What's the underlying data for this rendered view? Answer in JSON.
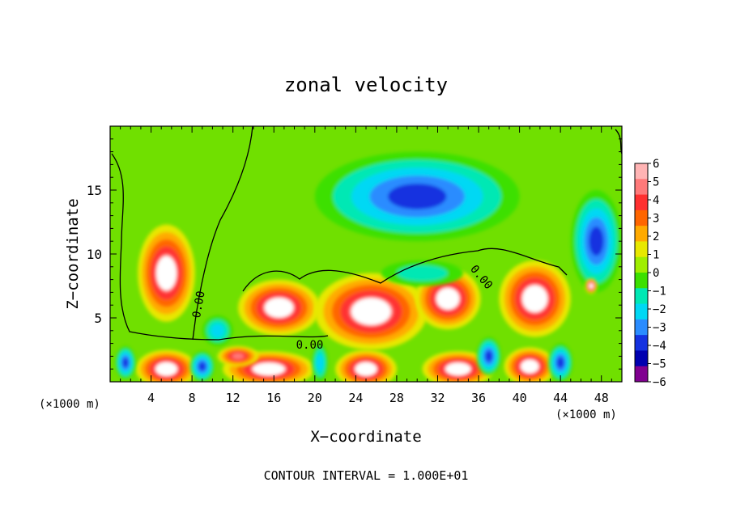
{
  "chart_data": {
    "type": "heatmap",
    "title": "zonal velocity",
    "xlabel": "X−coordinate",
    "ylabel": "Z−coordinate",
    "x_unit_left": "(×1000 m)",
    "x_unit_right": "(×1000 m)",
    "footer": "CONTOUR INTERVAL = 1.000E+01",
    "xlim": [
      0,
      50
    ],
    "ylim": [
      0,
      20
    ],
    "x_ticks": [
      4,
      8,
      12,
      16,
      20,
      24,
      28,
      32,
      36,
      40,
      44,
      48
    ],
    "y_ticks": [
      5,
      10,
      15
    ],
    "contour_labels": [
      "0.00",
      "0.00",
      "0.00"
    ],
    "colorbar": {
      "levels": [
        6,
        5,
        4,
        3,
        2,
        1,
        0,
        -1,
        -2,
        -3,
        -4,
        -5,
        -6
      ],
      "labels": [
        "6",
        "5",
        "4",
        "3",
        "2",
        "1",
        "0",
        "−1",
        "−2",
        "−3",
        "−4",
        "−5",
        "−6"
      ],
      "colors": [
        "#ffb4b4",
        "#ff7a7a",
        "#ff3030",
        "#ff6600",
        "#ffaa00",
        "#e8e800",
        "#a0ee00",
        "#3ce000",
        "#00e8b4",
        "#00d8f4",
        "#2a8cff",
        "#1432e0",
        "#0000b0",
        "#800090"
      ]
    },
    "features": [
      {
        "cx": 5.5,
        "cy": 8.5,
        "rx": 2.8,
        "ry": 3.8,
        "value": 6
      },
      {
        "cx": 16.5,
        "cy": 5.8,
        "rx": 4.0,
        "ry": 2.2,
        "value": 6
      },
      {
        "cx": 25.5,
        "cy": 5.5,
        "rx": 5.5,
        "ry": 3.0,
        "value": 6
      },
      {
        "cx": 33.0,
        "cy": 6.5,
        "rx": 3.2,
        "ry": 2.4,
        "value": 6
      },
      {
        "cx": 41.5,
        "cy": 6.5,
        "rx": 3.5,
        "ry": 3.0,
        "value": 6
      },
      {
        "cx": 5.5,
        "cy": 1.0,
        "rx": 3.0,
        "ry": 1.5,
        "value": 6
      },
      {
        "cx": 15.5,
        "cy": 1.0,
        "rx": 4.5,
        "ry": 1.4,
        "value": 6
      },
      {
        "cx": 25.0,
        "cy": 1.0,
        "rx": 3.0,
        "ry": 1.5,
        "value": 6
      },
      {
        "cx": 34.0,
        "cy": 1.0,
        "rx": 3.5,
        "ry": 1.4,
        "value": 6
      },
      {
        "cx": 41.0,
        "cy": 1.2,
        "rx": 2.5,
        "ry": 1.5,
        "value": 6
      },
      {
        "cx": 12.5,
        "cy": 2.0,
        "rx": 2.0,
        "ry": 0.8,
        "value": 5
      },
      {
        "cx": 30.0,
        "cy": 14.5,
        "rx": 10.0,
        "ry": 3.5,
        "value": -5
      },
      {
        "cx": 47.5,
        "cy": 11.0,
        "rx": 2.5,
        "ry": 4.0,
        "value": -5
      },
      {
        "cx": 47.0,
        "cy": 7.5,
        "rx": 0.6,
        "ry": 0.6,
        "value": 6
      },
      {
        "cx": 10.5,
        "cy": 4.0,
        "rx": 1.5,
        "ry": 1.2,
        "value": -3
      },
      {
        "cx": 30.5,
        "cy": 8.5,
        "rx": 4.0,
        "ry": 1.0,
        "value": -2
      },
      {
        "cx": 37.0,
        "cy": 2.0,
        "rx": 1.2,
        "ry": 1.5,
        "value": -5
      },
      {
        "cx": 44.0,
        "cy": 1.5,
        "rx": 1.2,
        "ry": 1.5,
        "value": -5
      },
      {
        "cx": 20.5,
        "cy": 1.5,
        "rx": 0.8,
        "ry": 1.5,
        "value": -3
      },
      {
        "cx": 9.0,
        "cy": 1.2,
        "rx": 1.2,
        "ry": 1.2,
        "value": -5
      },
      {
        "cx": 1.5,
        "cy": 1.5,
        "rx": 1.0,
        "ry": 1.3,
        "value": -5
      }
    ]
  }
}
